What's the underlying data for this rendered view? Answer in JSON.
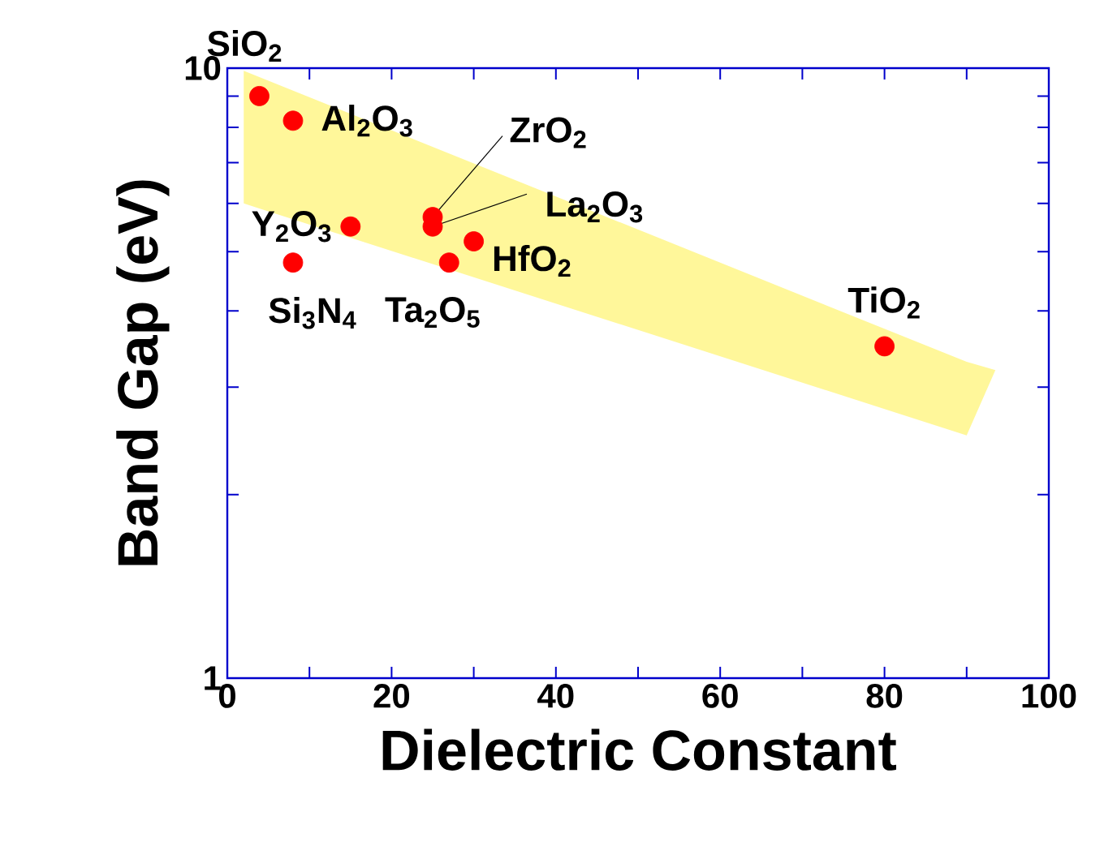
{
  "chart_data": {
    "type": "scatter",
    "xlabel": "Dielectric Constant",
    "ylabel": "Band Gap (eV)",
    "xlim": [
      0,
      100
    ],
    "ylim": [
      1,
      10
    ],
    "log": "y",
    "xticks": [
      0,
      {
        "value": 10,
        "label": null
      },
      20,
      {
        "value": 30,
        "label": null
      },
      40,
      {
        "value": 50,
        "label": null
      },
      60,
      {
        "value": 70,
        "label": null
      },
      80,
      {
        "value": 90,
        "label": null
      },
      100
    ],
    "yticks": [
      1,
      {
        "value": 2,
        "label": null
      },
      {
        "value": 3,
        "label": null
      },
      {
        "value": 4,
        "label": null
      },
      {
        "value": 5,
        "label": null
      },
      {
        "value": 6,
        "label": null
      },
      {
        "value": 7,
        "label": null
      },
      {
        "value": 8,
        "label": null
      },
      {
        "value": 9,
        "label": null
      },
      10
    ],
    "series": [
      {
        "type": "area",
        "color": "#fff79a",
        "x": [
          2,
          90,
          93.5,
          90,
          2
        ],
        "values": [
          9.9,
          3.3,
          3.2,
          2.5,
          6.0
        ]
      },
      {
        "color": "#ff0000",
        "marker": "circle",
        "x": [
          3.9,
          8,
          25,
          25,
          15,
          8,
          30,
          27,
          80
        ],
        "values": [
          9.0,
          8.2,
          5.7,
          5.5,
          5.5,
          4.8,
          5.2,
          4.8,
          3.5
        ]
      }
    ],
    "annotations": [
      {
        "text": "SiO$_{2}$",
        "x": 3.9,
        "y": 9.0
      },
      {
        "text": "Al$_{2}$O$_{3}$",
        "x": 8,
        "y": 8.2
      },
      {
        "text": "ZrO$_{2}$",
        "x": 25,
        "y": 5.7
      },
      {
        "text": "La$_{2}$O$_{3}$",
        "x": 25,
        "y": 5.5
      },
      {
        "text": "Y$_{2}$O$_{3}$",
        "x": 15,
        "y": 5.5
      },
      {
        "text": "Si$_{3}$N$_{4}$",
        "x": 8,
        "y": 4.8
      },
      {
        "text": "HfO$_{2}$",
        "x": 30,
        "y": 5.2
      },
      {
        "text": "Ta$_{2}$O$_{5}$",
        "x": 27,
        "y": 4.8
      },
      {
        "text": "TiO$_{2}$",
        "x": 80,
        "y": 3.5
      }
    ]
  }
}
